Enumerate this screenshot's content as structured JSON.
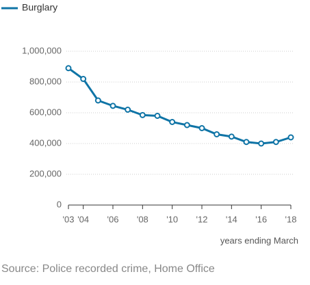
{
  "chart_data": {
    "type": "line",
    "categories": [
      "'03",
      "'04",
      null,
      "'06",
      null,
      "'08",
      null,
      "'10",
      null,
      "'12",
      null,
      "'14",
      null,
      "'16",
      null,
      "'18"
    ],
    "series": [
      {
        "name": "Burglary",
        "color": "#0f74a6",
        "values": [
          890000,
          820000,
          680000,
          645000,
          620000,
          585000,
          580000,
          540000,
          520000,
          500000,
          460000,
          445000,
          410000,
          400000,
          410000,
          440000
        ]
      }
    ],
    "ylim": [
      0,
      1000000
    ],
    "yticks": [
      0,
      {
        "value": 200000,
        "label": "200,000"
      },
      {
        "value": 400000,
        "label": "400,000"
      },
      {
        "value": 600000,
        "label": "600,000"
      },
      {
        "value": 800000,
        "label": "800,000"
      },
      {
        "value": 1000000,
        "label": "1,000,000"
      }
    ],
    "grid": true,
    "x_label": "years ending March",
    "source": "Source: Police recorded crime, Home Office"
  }
}
